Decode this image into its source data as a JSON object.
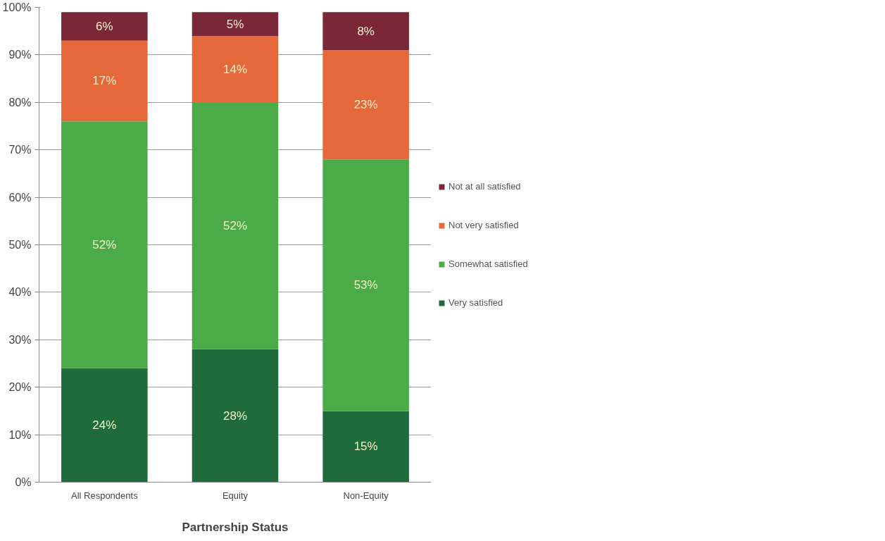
{
  "chart_data": {
    "type": "bar",
    "stacked": true,
    "xlabel": "Partnership Status",
    "categories": [
      "All Respondents",
      "Equity",
      "Non-Equity"
    ],
    "series": [
      {
        "name": "Very satisfied",
        "color": "#1f6b3b",
        "values": [
          24,
          28,
          15
        ],
        "value_labels": [
          "24%",
          "28%",
          "15%"
        ]
      },
      {
        "name": "Somewhat satisfied",
        "color": "#4aab48",
        "values": [
          52,
          52,
          53
        ],
        "value_labels": [
          "52%",
          "52%",
          "53%"
        ]
      },
      {
        "name": "Not very satisfied",
        "color": "#e5683a",
        "values": [
          17,
          14,
          23
        ],
        "value_labels": [
          "17%",
          "14%",
          "23%"
        ]
      },
      {
        "name": "Not at all satisfied",
        "color": "#7a2738",
        "values": [
          6,
          5,
          8
        ],
        "value_labels": [
          "6%",
          "5%",
          "8%"
        ]
      }
    ],
    "ylim": [
      0,
      100
    ],
    "yticks": [
      {
        "value": 0,
        "label": "0%"
      },
      {
        "value": 10,
        "label": "10%"
      },
      {
        "value": 20,
        "label": "20%"
      },
      {
        "value": 30,
        "label": "30%"
      },
      {
        "value": 40,
        "label": "40%"
      },
      {
        "value": 50,
        "label": "50%"
      },
      {
        "value": 60,
        "label": "60%"
      },
      {
        "value": 70,
        "label": "70%"
      },
      {
        "value": 80,
        "label": "80%"
      },
      {
        "value": 90,
        "label": "90%"
      },
      {
        "value": 100,
        "label": "100%"
      }
    ],
    "grid": "y",
    "legend": "right"
  }
}
